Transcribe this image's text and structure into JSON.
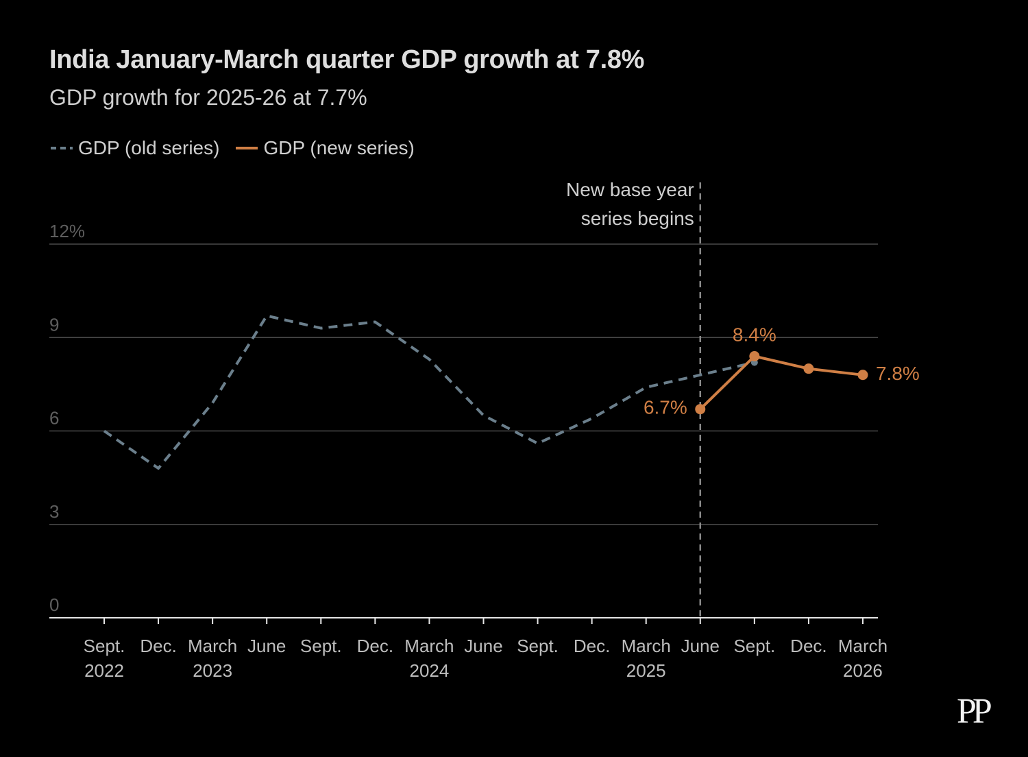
{
  "chart_data": {
    "type": "line",
    "title": "India January-March quarter GDP growth at 7.8%",
    "subtitle": "GDP growth for 2025-26 at 7.7%",
    "x_categories": [
      {
        "line1": "Sept.",
        "line2": "2022"
      },
      {
        "line1": "Dec.",
        "line2": ""
      },
      {
        "line1": "March",
        "line2": "2023"
      },
      {
        "line1": "June",
        "line2": ""
      },
      {
        "line1": "Sept.",
        "line2": ""
      },
      {
        "line1": "Dec.",
        "line2": ""
      },
      {
        "line1": "March",
        "line2": "2024"
      },
      {
        "line1": "June",
        "line2": ""
      },
      {
        "line1": "Sept.",
        "line2": ""
      },
      {
        "line1": "Dec.",
        "line2": ""
      },
      {
        "line1": "March",
        "line2": "2025"
      },
      {
        "line1": "June",
        "line2": ""
      },
      {
        "line1": "Sept.",
        "line2": ""
      },
      {
        "line1": "Dec.",
        "line2": ""
      },
      {
        "line1": "March",
        "line2": "2026"
      }
    ],
    "ylim": [
      0,
      12
    ],
    "yticks": [
      {
        "value": 0,
        "label": "0"
      },
      {
        "value": 3,
        "label": "3"
      },
      {
        "value": 6,
        "label": "6"
      },
      {
        "value": 9,
        "label": "9"
      },
      {
        "value": 12,
        "label": "12%"
      }
    ],
    "grid": true,
    "legend_position": "top-left",
    "series": [
      {
        "name": "GDP (old series)",
        "style": "dashed",
        "color": "#6b7f8c",
        "values": [
          6.0,
          4.8,
          6.9,
          9.7,
          9.3,
          9.5,
          8.3,
          6.5,
          5.6,
          6.4,
          7.4,
          7.8,
          8.2,
          null,
          null
        ]
      },
      {
        "name": "GDP (new series)",
        "style": "solid",
        "color": "#d07f45",
        "values": [
          null,
          null,
          null,
          null,
          null,
          null,
          null,
          null,
          null,
          null,
          null,
          6.7,
          8.4,
          8.0,
          7.8
        ],
        "data_labels": [
          {
            "index": 11,
            "text": "6.7%"
          },
          {
            "index": 12,
            "text": "8.4%"
          },
          {
            "index": 14,
            "text": "7.8%"
          }
        ]
      }
    ],
    "annotation": {
      "index": 11,
      "line1": "New base year",
      "line2": "series begins"
    }
  },
  "logo": "PP"
}
